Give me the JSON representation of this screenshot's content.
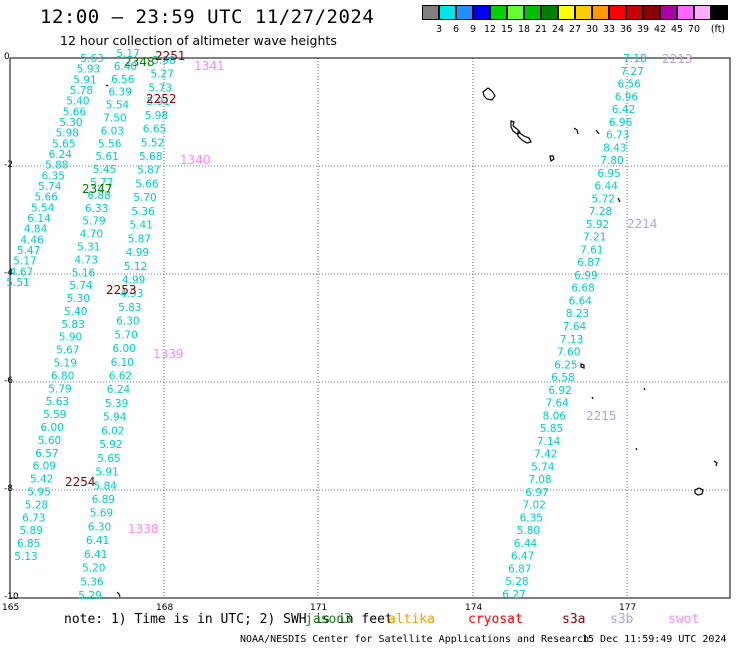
{
  "header": {
    "title": "12:00 — 23:59 UTC 11/27/2024",
    "subtitle": "12 hour collection of altimeter wave heights"
  },
  "legend": {
    "unit": "(ft)",
    "swatches": [
      {
        "color": "#808080",
        "label": ""
      },
      {
        "color": "#00e5e5",
        "label": "3"
      },
      {
        "color": "#1e90ff",
        "label": "6"
      },
      {
        "color": "#0000ee",
        "label": "9"
      },
      {
        "color": "#00d200",
        "label": "12"
      },
      {
        "color": "#66ff33",
        "label": "15"
      },
      {
        "color": "#00c000",
        "label": "18"
      },
      {
        "color": "#008000",
        "label": "21"
      },
      {
        "color": "#ffff00",
        "label": "24"
      },
      {
        "color": "#ffcc00",
        "label": "27"
      },
      {
        "color": "#ff9900",
        "label": "30"
      },
      {
        "color": "#ff0000",
        "label": "33"
      },
      {
        "color": "#c80000",
        "label": "36"
      },
      {
        "color": "#8b0000",
        "label": "39"
      },
      {
        "color": "#aa00aa",
        "label": "42"
      },
      {
        "color": "#ff66ff",
        "label": "45"
      },
      {
        "color": "#ffaaff",
        "label": "70"
      },
      {
        "color": "#000000",
        "label": ""
      }
    ]
  },
  "axes": {
    "y_ticks": [
      "0",
      "-2",
      "-4",
      "-6",
      "-8",
      "-10"
    ],
    "x_ticks": [
      "165",
      "168",
      "171",
      "174",
      "177"
    ]
  },
  "tracks": [
    {
      "values": [
        "5.63",
        "5.93",
        "5.91",
        "5.78",
        "5.40",
        "5.66",
        "5.30",
        "5.98",
        "5.65",
        "6.24",
        "5.88",
        "6.35",
        "5.74",
        "5.66",
        "5.54",
        "6.14",
        "4.84",
        "4.46",
        "5.47",
        "5.17",
        "4.67",
        "5.51"
      ]
    },
    {
      "values": [
        "5.17",
        "6.40",
        "6.56",
        "6.39",
        "5.54",
        "7.50",
        "6.03",
        "5.56",
        "5.61",
        "5.45",
        "5.77",
        "6.88",
        "6.33",
        "5.79",
        "4.70",
        "5.31",
        "4.73",
        "5.16",
        "5.74",
        "5.30",
        "5.40",
        "5.83",
        "5.90",
        "5.67",
        "5.19",
        "6.80",
        "5.79",
        "5.63",
        "5.59",
        "6.00",
        "5.60",
        "6.57",
        "6.09",
        "5.42",
        "5.95",
        "5.28",
        "6.73",
        "5.89",
        "6.85",
        "5.13"
      ]
    },
    {
      "values": [
        "5.98",
        "5.27",
        "5.73",
        "5.91",
        "5.98",
        "6.65",
        "5.52",
        "5.68",
        "5.87",
        "5.66",
        "5.70",
        "5.36",
        "5.41",
        "5.87",
        "4.99",
        "5.12",
        "4.99",
        "4.93",
        "5.83",
        "6.30",
        "5.70",
        "6.00",
        "6.10",
        "6.62",
        "6.24",
        "5.39",
        "5.94",
        "6.02",
        "5.92",
        "5.65",
        "5.91",
        "5.84",
        "6.89",
        "5.69",
        "6.30",
        "6.41",
        "6.41",
        "5.20",
        "5.36",
        "5.29"
      ]
    },
    {
      "values": [
        "7.18",
        "7.27",
        "6.56",
        "6.96",
        "6.42",
        "6.96",
        "6.73",
        "8.43",
        "7.80",
        "6.95",
        "6.44",
        "5.72",
        "7.28",
        "5.92",
        "7.21",
        "7.61",
        "6.87",
        "6.99",
        "6.68",
        "6.64",
        "8.23",
        "7.64",
        "7.13",
        "7.60",
        "6.25",
        "6.58",
        "6.92",
        "7.64",
        "8.06",
        "5.85",
        "7.14",
        "7.42",
        "5.74",
        "7.08",
        "6.97",
        "7.02",
        "6.35",
        "5.80",
        "6.44",
        "6.47",
        "6.87",
        "5.28",
        "6.27"
      ]
    }
  ],
  "pass_labels": [
    "2251",
    "2348",
    "1341",
    "2252",
    "1340",
    "2347",
    "2253",
    "1339",
    "2254",
    "1338",
    "2213",
    "2214",
    "2215"
  ],
  "note": "note:  1) Time is in UTC; 2) SWH is in feet",
  "satellites": [
    "jason3",
    "altika",
    "cryosat",
    "s3a",
    "s3b",
    "swot"
  ],
  "credit": "NOAA/NESDIS Center for Satellite Applications and Research",
  "timestamp": "15 Dec 11:59:49 UTC 2024"
}
